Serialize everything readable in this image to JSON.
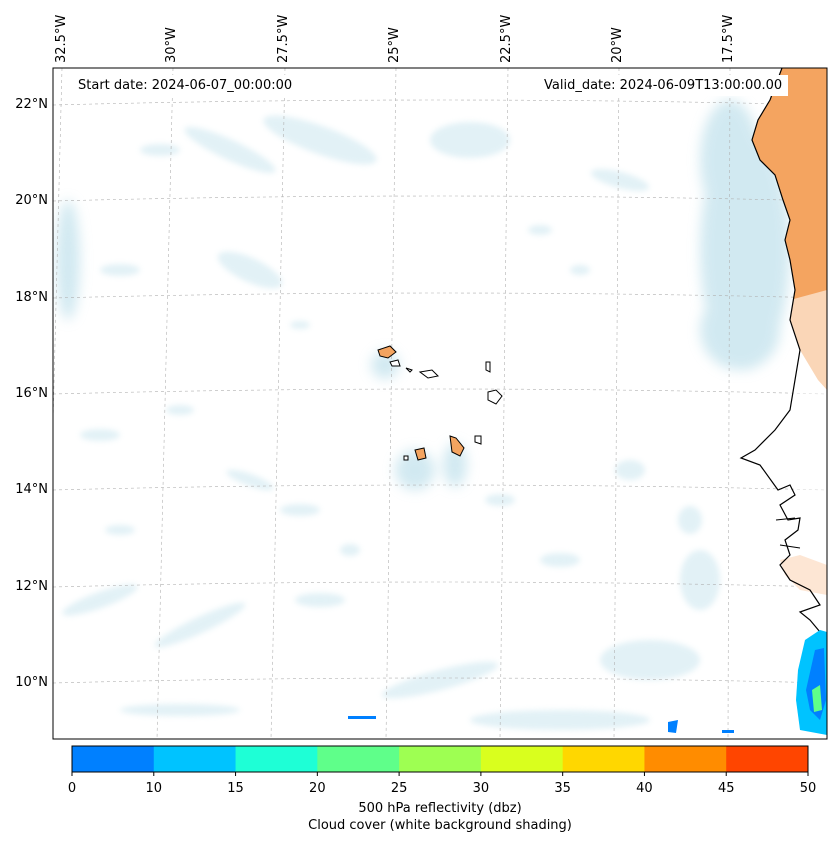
{
  "map": {
    "start_date_label": "Start date: 2024-06-07_00:00:00",
    "valid_date_label": "Valid_date: 2024-06-09T13:00:00.00",
    "lon_ticks": [
      "32.5°W",
      "30°W",
      "27.5°W",
      "25°W",
      "22.5°W",
      "20°W",
      "17.5°W"
    ],
    "lat_ticks": [
      "22°N",
      "20°N",
      "18°N",
      "16°N",
      "14°N",
      "12°N",
      "10°N"
    ],
    "colors": {
      "land": "#f4a460",
      "cloud": "#add8e6",
      "coastline": "#000000",
      "gridline": "#b0b0b0"
    }
  },
  "colorbar": {
    "ticks": [
      "0",
      "10",
      "15",
      "20",
      "25",
      "30",
      "35",
      "40",
      "45",
      "50"
    ],
    "colors": [
      "#0080ff",
      "#00c3ff",
      "#1effd6",
      "#5fff8a",
      "#9eff52",
      "#d9ff1e",
      "#ffd700",
      "#ff8c00",
      "#ff4500"
    ],
    "label": "500 hPa reflectivity (dbz)",
    "sublabel": "Cloud cover (white background shading)"
  }
}
